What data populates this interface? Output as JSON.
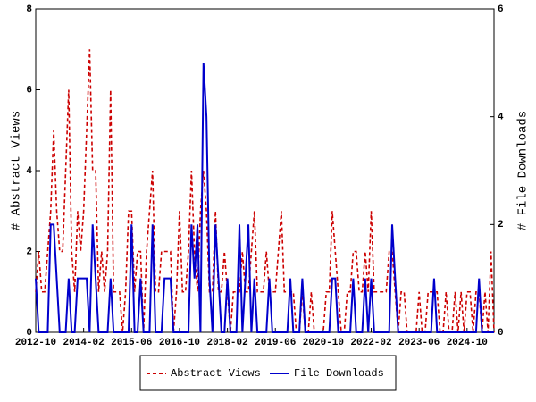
{
  "chart_data": {
    "type": "line",
    "x": [
      "2012-10",
      "2012-11",
      "2012-12",
      "2013-01",
      "2013-02",
      "2013-03",
      "2013-04",
      "2013-05",
      "2013-06",
      "2013-07",
      "2013-08",
      "2013-09",
      "2013-10",
      "2013-11",
      "2013-12",
      "2014-01",
      "2014-02",
      "2014-03",
      "2014-04",
      "2014-05",
      "2014-06",
      "2014-07",
      "2014-08",
      "2014-09",
      "2014-10",
      "2014-11",
      "2014-12",
      "2015-01",
      "2015-02",
      "2015-03",
      "2015-04",
      "2015-05",
      "2015-06",
      "2015-07",
      "2015-08",
      "2015-09",
      "2015-10",
      "2015-11",
      "2015-12",
      "2016-01",
      "2016-02",
      "2016-03",
      "2016-04",
      "2016-05",
      "2016-06",
      "2016-07",
      "2016-08",
      "2016-09",
      "2016-10",
      "2016-11",
      "2016-12",
      "2017-01",
      "2017-02",
      "2017-03",
      "2017-04",
      "2017-05",
      "2017-06",
      "2017-07",
      "2017-08",
      "2017-09",
      "2017-10",
      "2017-11",
      "2017-12",
      "2018-01",
      "2018-02",
      "2018-03",
      "2018-04",
      "2018-05",
      "2018-06",
      "2018-07",
      "2018-08",
      "2018-09",
      "2018-10",
      "2018-11",
      "2018-12",
      "2019-01",
      "2019-02",
      "2019-03",
      "2019-04",
      "2019-05",
      "2019-06",
      "2019-07",
      "2019-08",
      "2019-09",
      "2019-10",
      "2019-11",
      "2019-12",
      "2020-01",
      "2020-02",
      "2020-03",
      "2020-04",
      "2020-05",
      "2020-06",
      "2020-07",
      "2020-08",
      "2020-09",
      "2020-10",
      "2020-11",
      "2020-12",
      "2021-01",
      "2021-02",
      "2021-03",
      "2021-04",
      "2021-05",
      "2021-06",
      "2021-07",
      "2021-08",
      "2021-09",
      "2021-10",
      "2021-11",
      "2021-12",
      "2022-01",
      "2022-02",
      "2022-03",
      "2022-04",
      "2022-05",
      "2022-06",
      "2022-07",
      "2022-08",
      "2022-09",
      "2022-10",
      "2022-11",
      "2022-12",
      "2023-01",
      "2023-02",
      "2023-03",
      "2023-04",
      "2023-05",
      "2023-06",
      "2023-07",
      "2023-08",
      "2023-09",
      "2023-10",
      "2023-11",
      "2023-12",
      "2024-01",
      "2024-02",
      "2024-03",
      "2024-04",
      "2024-05",
      "2024-06",
      "2024-07",
      "2024-08",
      "2024-09",
      "2024-10",
      "2024-11",
      "2024-12",
      "2025-01",
      "2025-02",
      "2025-03",
      "2025-04",
      "2025-05",
      "2025-06",
      "2025-07"
    ],
    "xticks": [
      "2012-10",
      "2014-02",
      "2015-06",
      "2016-10",
      "2018-02",
      "2019-06",
      "2020-10",
      "2022-02",
      "2023-06",
      "2024-10"
    ],
    "ylabel": "# Abstract Views",
    "y2label": "# File Downloads",
    "ylim": [
      0,
      8
    ],
    "yticks": [
      0,
      2,
      4,
      6,
      8
    ],
    "y2lim": [
      0,
      6
    ],
    "y2ticks": [
      0,
      2,
      4,
      6
    ],
    "legend": "bottom",
    "series": [
      {
        "name": "Abstract Views",
        "color": "#cc0000",
        "linestyle": "dashed",
        "axis": "y",
        "values": [
          1,
          2,
          1,
          1,
          2,
          3,
          5,
          3,
          2,
          2,
          4,
          6,
          2,
          1,
          3,
          2,
          3,
          5,
          7,
          4,
          4,
          1,
          2,
          1,
          2,
          6,
          1,
          1,
          1,
          0,
          1,
          3,
          3,
          1,
          2,
          2,
          0,
          2,
          3,
          4,
          1,
          1,
          2,
          2,
          2,
          2,
          0,
          1,
          3,
          1,
          1,
          2,
          4,
          2,
          1,
          3,
          4,
          3,
          1,
          1,
          3,
          1,
          1,
          2,
          1,
          0,
          1,
          1,
          1,
          2,
          1,
          1,
          2,
          3,
          1,
          1,
          1,
          2,
          1,
          1,
          1,
          2,
          3,
          1,
          1,
          1,
          1,
          0,
          0,
          1,
          0,
          0,
          1,
          0,
          0,
          0,
          0,
          1,
          1,
          3,
          2,
          1,
          0,
          0,
          1,
          1,
          2,
          2,
          1,
          1,
          2,
          1,
          3,
          1,
          1,
          1,
          1,
          1,
          2,
          2,
          1,
          0,
          1,
          1,
          0,
          0,
          0,
          0,
          1,
          0,
          0,
          1,
          1,
          1,
          1,
          0,
          0,
          1,
          0,
          0,
          1,
          0,
          1,
          0,
          1,
          1,
          0,
          1,
          1,
          0,
          1,
          0,
          2,
          0
        ]
      },
      {
        "name": "File Downloads",
        "color": "#0000cc",
        "linestyle": "solid",
        "axis": "y2",
        "values": [
          1,
          0,
          0,
          0,
          0,
          2,
          2,
          1,
          0,
          0,
          0,
          1,
          0,
          0,
          1,
          1,
          1,
          1,
          0,
          2,
          1,
          0,
          0,
          0,
          0,
          1,
          0,
          0,
          0,
          0,
          0,
          0,
          2,
          0,
          0,
          1,
          0,
          0,
          0,
          2,
          0,
          0,
          0,
          1,
          1,
          1,
          0,
          0,
          0,
          0,
          0,
          0,
          2,
          1,
          2,
          0,
          5,
          4,
          1,
          0,
          2,
          1,
          0,
          0,
          1,
          0,
          0,
          0,
          2,
          0,
          1,
          2,
          0,
          1,
          0,
          0,
          0,
          0,
          1,
          0,
          0,
          0,
          0,
          0,
          0,
          1,
          0,
          0,
          0,
          1,
          0,
          0,
          0,
          0,
          0,
          0,
          0,
          0,
          0,
          1,
          1,
          0,
          0,
          0,
          0,
          0,
          1,
          0,
          0,
          0,
          1,
          0,
          1,
          0,
          0,
          0,
          0,
          0,
          0,
          2,
          1,
          0,
          0,
          0,
          0,
          0,
          0,
          0,
          0,
          0,
          0,
          0,
          0,
          1,
          0,
          0,
          0,
          0,
          0,
          0,
          0,
          0,
          0,
          0,
          0,
          0,
          0,
          0,
          1,
          0,
          0,
          0,
          0,
          0
        ]
      }
    ]
  }
}
